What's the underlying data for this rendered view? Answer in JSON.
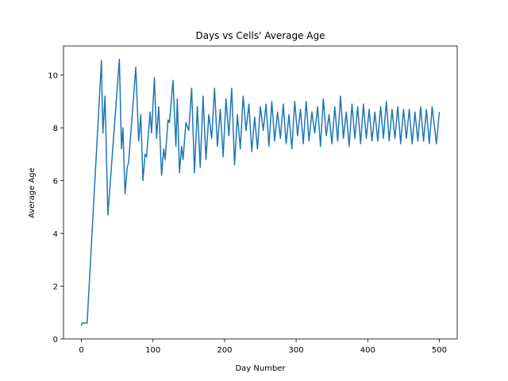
{
  "chart_data": {
    "type": "line",
    "title": "Days vs Cells' Average Age",
    "x_label": "Day Number",
    "y_label": "Average Age",
    "x": [
      0,
      1,
      8,
      28,
      30,
      33,
      37,
      53,
      56,
      58,
      61,
      64,
      66,
      76,
      80,
      83,
      86,
      89,
      91,
      96,
      98,
      102,
      105,
      108,
      112,
      115,
      117,
      121,
      123,
      128,
      132,
      134,
      137,
      140,
      142,
      146,
      150,
      154,
      158,
      162,
      166,
      170,
      174,
      178,
      182,
      186,
      190,
      194,
      198,
      202,
      206,
      210,
      214,
      218,
      222,
      226,
      230,
      234,
      238,
      242,
      246,
      250,
      254,
      258,
      262,
      266,
      270,
      274,
      278,
      282,
      286,
      290,
      294,
      298,
      302,
      306,
      310,
      314,
      318,
      322,
      326,
      330,
      334,
      338,
      342,
      346,
      350,
      354,
      358,
      362,
      366,
      370,
      374,
      378,
      382,
      386,
      390,
      394,
      398,
      402,
      406,
      410,
      414,
      418,
      422,
      426,
      430,
      434,
      438,
      442,
      446,
      450,
      454,
      458,
      462,
      466,
      470,
      474,
      478,
      482,
      486,
      490,
      496,
      500
    ],
    "series": [
      {
        "name": "Average Age",
        "color": "#1f77b4",
        "values": [
          0.5,
          0.6,
          0.6,
          10.55,
          7.8,
          9.2,
          4.7,
          10.6,
          7.2,
          8.0,
          5.5,
          6.5,
          6.7,
          10.3,
          7.5,
          8.5,
          6.0,
          7.0,
          6.9,
          8.6,
          7.8,
          9.9,
          7.6,
          8.8,
          6.2,
          7.2,
          6.8,
          8.3,
          8.2,
          9.8,
          7.3,
          9.1,
          6.3,
          7.3,
          6.8,
          8.2,
          7.9,
          9.5,
          6.3,
          8.8,
          6.5,
          9.2,
          6.8,
          8.5,
          7.6,
          9.5,
          7.3,
          8.7,
          6.9,
          9.1,
          7.7,
          9.5,
          6.6,
          8.5,
          7.2,
          9.2,
          7.9,
          8.9,
          7.1,
          8.4,
          7.2,
          8.8,
          7.9,
          8.9,
          7.3,
          9.0,
          7.5,
          8.6,
          7.6,
          8.9,
          7.4,
          8.5,
          7.2,
          9.0,
          7.7,
          8.7,
          7.4,
          9.0,
          7.5,
          8.6,
          7.8,
          8.8,
          7.3,
          9.1,
          7.7,
          8.5,
          7.4,
          8.8,
          7.5,
          9.2,
          7.6,
          8.6,
          7.3,
          8.9,
          7.6,
          8.8,
          7.4,
          8.9,
          7.6,
          8.7,
          7.5,
          8.6,
          7.5,
          8.8,
          7.6,
          9.0,
          7.5,
          8.7,
          7.6,
          8.8,
          7.4,
          8.7,
          7.6,
          8.7,
          7.4,
          8.6,
          7.5,
          8.8,
          7.5,
          8.7,
          7.4,
          8.8,
          7.4,
          8.6
        ]
      }
    ],
    "xlim": [
      -25,
      525
    ],
    "ylim": [
      0,
      11.1
    ],
    "xticks": [
      0,
      100,
      200,
      300,
      400,
      500
    ],
    "yticks": [
      0,
      2,
      4,
      6,
      8,
      10
    ]
  }
}
